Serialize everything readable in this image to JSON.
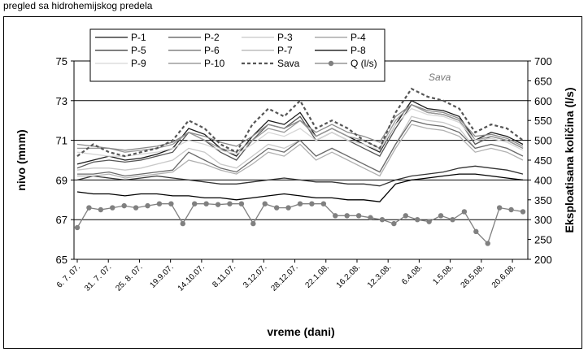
{
  "caption": "pregled sa hidrohemijskog predela",
  "chart_data": {
    "type": "line",
    "xlabel": "vreme (dani)",
    "ylabel_left": "nivo (mnm)",
    "ylabel_right": "Eksploatisana količina (l/s)",
    "ylim_left": [
      65,
      75
    ],
    "yticks_left": [
      "65",
      "67",
      "69",
      "71",
      "73",
      "75"
    ],
    "ylim_right": [
      200,
      700
    ],
    "yticks_right": [
      "200",
      "250",
      "300",
      "350",
      "400",
      "450",
      "500",
      "550",
      "600",
      "650",
      "700"
    ],
    "x_tick_labels": [
      "6. 7. 07.",
      "31. 7. 07.",
      "25. 8. 07.",
      "19.9.07.",
      "14.10.07.",
      "8.11.07.",
      "3.12.07.",
      "28.12.07.",
      "22.1.08.",
      "16.2.08.",
      "12.3.08.",
      "6.4.08.",
      "1.5.08.",
      "26.5.08.",
      "20.6.08."
    ],
    "gridlines_left": [
      67,
      69,
      71,
      73
    ],
    "annotation": "Sava",
    "legend_position": "top-left",
    "series": [
      {
        "name": "P-1",
        "color": "#1a1a1a",
        "style": "solid",
        "axis": "left",
        "values": [
          69.8,
          70.0,
          70.2,
          70.0,
          70.1,
          70.3,
          70.6,
          71.6,
          71.3,
          70.6,
          70.2,
          71.2,
          72.0,
          71.8,
          72.4,
          71.2,
          71.6,
          71.2,
          70.8,
          70.4,
          71.8,
          73.0,
          72.6,
          72.5,
          72.2,
          71.0,
          71.4,
          71.2,
          70.8
        ]
      },
      {
        "name": "P-2",
        "color": "#555555",
        "style": "solid",
        "axis": "left",
        "values": [
          69.6,
          69.9,
          70.0,
          69.9,
          70.0,
          70.2,
          70.4,
          71.4,
          71.0,
          70.4,
          70.0,
          71.0,
          71.8,
          71.6,
          72.2,
          71.0,
          71.4,
          71.0,
          70.6,
          70.2,
          71.6,
          72.8,
          72.4,
          72.3,
          72.0,
          70.8,
          71.2,
          71.0,
          70.6
        ]
      },
      {
        "name": "P-3",
        "color": "#c8c8c8",
        "style": "solid",
        "axis": "left",
        "values": [
          69.5,
          69.6,
          69.6,
          69.5,
          69.6,
          69.8,
          70.0,
          70.6,
          70.4,
          69.8,
          69.6,
          70.2,
          70.8,
          70.6,
          71.0,
          70.2,
          70.6,
          70.2,
          69.8,
          69.4,
          70.8,
          72.2,
          72.0,
          71.9,
          71.6,
          70.6,
          70.8,
          70.6,
          70.2
        ]
      },
      {
        "name": "P-4",
        "color": "#999999",
        "style": "solid",
        "axis": "left",
        "values": [
          70.6,
          70.6,
          70.6,
          70.4,
          70.5,
          70.6,
          70.8,
          71.4,
          71.0,
          70.6,
          70.4,
          71.0,
          71.6,
          71.4,
          72.0,
          71.2,
          71.6,
          71.2,
          71.0,
          70.6,
          72.0,
          72.8,
          72.4,
          72.3,
          72.0,
          71.0,
          71.2,
          71.0,
          70.6
        ]
      },
      {
        "name": "P-5",
        "color": "#333333",
        "style": "solid",
        "axis": "left",
        "values": [
          69.0,
          69.2,
          69.1,
          69.0,
          69.1,
          69.2,
          69.1,
          69.0,
          68.9,
          68.8,
          68.8,
          68.9,
          69.0,
          69.1,
          69.0,
          68.9,
          68.9,
          68.8,
          68.8,
          68.7,
          69.0,
          69.2,
          69.3,
          69.4,
          69.6,
          69.7,
          69.6,
          69.5,
          69.3
        ]
      },
      {
        "name": "P-6",
        "color": "#6a6a6a",
        "style": "solid",
        "axis": "left",
        "values": [
          69.3,
          69.3,
          69.4,
          69.2,
          69.3,
          69.4,
          69.5,
          70.4,
          70.0,
          69.6,
          69.4,
          70.0,
          70.6,
          70.4,
          71.0,
          70.2,
          70.6,
          70.2,
          69.8,
          69.4,
          70.8,
          72.0,
          71.8,
          71.7,
          71.4,
          70.6,
          70.8,
          70.6,
          70.2
        ]
      },
      {
        "name": "P-7",
        "color": "#b0b0b0",
        "style": "solid",
        "axis": "left",
        "values": [
          69.2,
          69.2,
          69.3,
          69.1,
          69.2,
          69.3,
          69.4,
          70.0,
          69.8,
          69.5,
          69.3,
          69.8,
          70.4,
          70.2,
          70.8,
          70.0,
          70.4,
          70.0,
          69.6,
          69.2,
          70.6,
          71.8,
          71.6,
          71.5,
          71.2,
          70.4,
          70.6,
          70.4,
          70.0
        ]
      },
      {
        "name": "P-8",
        "color": "#000000",
        "style": "solid",
        "axis": "left",
        "values": [
          68.4,
          68.3,
          68.3,
          68.2,
          68.3,
          68.3,
          68.2,
          68.2,
          68.1,
          68.1,
          68.0,
          68.1,
          68.2,
          68.3,
          68.2,
          68.1,
          68.1,
          68.0,
          68.0,
          67.9,
          68.8,
          69.0,
          69.1,
          69.2,
          69.3,
          69.3,
          69.2,
          69.1,
          69.0
        ]
      },
      {
        "name": "P-9",
        "color": "#d6d6d6",
        "style": "solid",
        "axis": "left",
        "values": [
          70.4,
          70.3,
          70.2,
          70.2,
          70.3,
          70.4,
          70.6,
          71.0,
          70.8,
          70.5,
          70.3,
          70.8,
          71.4,
          71.2,
          71.6,
          71.0,
          71.4,
          71.0,
          70.8,
          70.5,
          71.8,
          72.6,
          72.3,
          72.2,
          71.9,
          71.0,
          71.1,
          70.9,
          70.5
        ]
      },
      {
        "name": "P-10",
        "color": "#8a8a8a",
        "style": "solid",
        "axis": "left",
        "values": [
          70.8,
          70.7,
          70.6,
          70.5,
          70.6,
          70.7,
          70.9,
          71.4,
          71.2,
          70.9,
          70.7,
          71.2,
          71.8,
          71.6,
          72.0,
          71.4,
          71.8,
          71.4,
          71.2,
          70.9,
          72.2,
          72.8,
          72.5,
          72.4,
          72.1,
          71.2,
          71.3,
          71.1,
          70.7
        ]
      },
      {
        "name": "Sava",
        "color": "#555555",
        "style": "dashed",
        "axis": "left",
        "values": [
          70.2,
          70.8,
          70.4,
          70.2,
          70.4,
          70.6,
          71.0,
          72.0,
          71.6,
          70.8,
          70.4,
          71.8,
          72.6,
          72.2,
          73.0,
          71.6,
          72.0,
          71.6,
          71.0,
          70.6,
          72.4,
          73.6,
          73.2,
          73.0,
          72.6,
          71.4,
          71.8,
          71.6,
          71.0
        ]
      },
      {
        "name": "Q (l/s)",
        "color": "#808080",
        "style": "marker",
        "axis": "right",
        "values": [
          280,
          330,
          325,
          330,
          335,
          330,
          335,
          340,
          340,
          290,
          340,
          340,
          338,
          340,
          340,
          290,
          340,
          330,
          330,
          340,
          340,
          340,
          310,
          310,
          310,
          305,
          300,
          290,
          310,
          300,
          295,
          310,
          300,
          320,
          270,
          240,
          330,
          325,
          320
        ]
      }
    ]
  }
}
